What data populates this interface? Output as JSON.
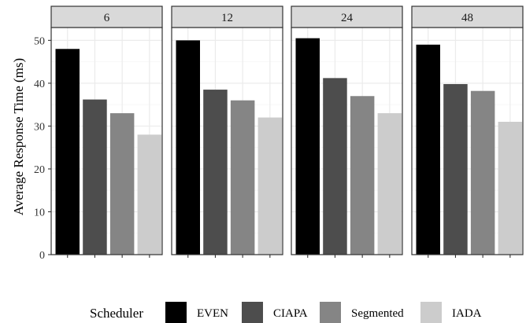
{
  "chart_data": {
    "type": "bar",
    "facet_panels": [
      "6",
      "12",
      "24",
      "48"
    ],
    "categories": [
      "EVEN",
      "CIAPA",
      "Segmented",
      "IADA"
    ],
    "series": [
      {
        "panel": "6",
        "values": [
          48,
          36.2,
          33,
          28
        ]
      },
      {
        "panel": "12",
        "values": [
          50,
          38.5,
          36,
          32
        ]
      },
      {
        "panel": "24",
        "values": [
          50.5,
          41.2,
          37,
          33
        ]
      },
      {
        "panel": "48",
        "values": [
          49,
          39.8,
          38.2,
          31
        ]
      }
    ],
    "title": "",
    "xlabel": "",
    "ylabel": "Average Response Time (ms)",
    "ylim": [
      0,
      53
    ],
    "yticks": [
      0,
      10,
      20,
      30,
      40,
      50
    ],
    "grid": true,
    "legend": {
      "title": "Scheduler",
      "position": "bottom",
      "entries": [
        "EVEN",
        "CIAPA",
        "Segmented",
        "IADA"
      ]
    },
    "colors": {
      "EVEN": "#000000",
      "CIAPA": "#4d4d4d",
      "Segmented": "#858585",
      "IADA": "#cccccc",
      "strip_fill": "#d9d9d9",
      "panel_border": "#333333",
      "grid_major": "#ebebeb",
      "grid_minor": "#f5f5f5"
    }
  }
}
